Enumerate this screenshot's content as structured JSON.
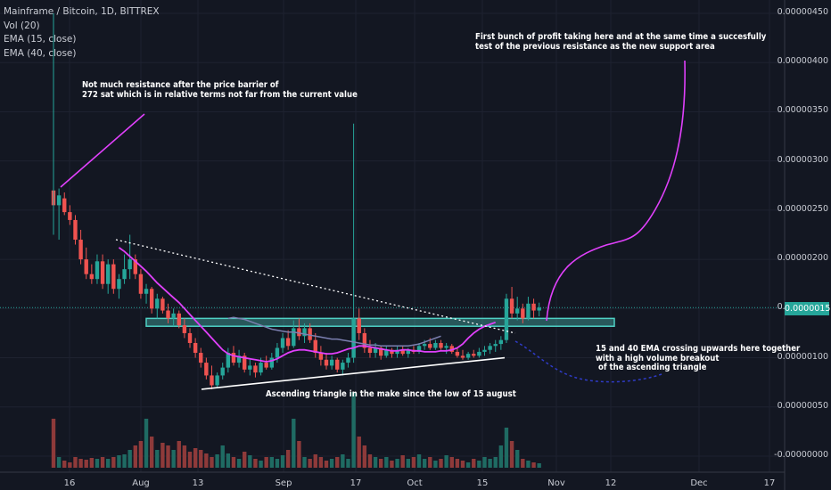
{
  "legend": {
    "title": "Mainframe / Bitcoin, 1D, BITTREX",
    "vol": "Vol (20)",
    "ema15": "EMA (15, close)",
    "ema40": "EMA (40, close)"
  },
  "price_axis": {
    "labels": [
      "0.00000450",
      "0.00000400",
      "0.00000350",
      "0.00000300",
      "0.00000250",
      "0.00000200",
      "0.00000150",
      "0.00000100",
      "0.00000050",
      "-0.00000000"
    ],
    "current_price": "0.00000151"
  },
  "time_axis": {
    "labels": [
      "16",
      "Aug",
      "13",
      "Sep",
      "17",
      "Oct",
      "15",
      "Nov",
      "12",
      "Dec",
      "17"
    ]
  },
  "annotations": {
    "resistance": "Not much resistance after the price barrier of\n272 sat which is in relative terms not far from the current value",
    "profit": "First bunch of profit taking here and at the same time a succesfully\ntest of the previous resistance as the new support area",
    "triangle": "Ascending triangle in the make since the low of 15 august",
    "ema_cross": "15 and 40 EMA crossing upwards here together\nwith a high volume breakout\n of the ascending triangle"
  },
  "colors": {
    "up": "#26a69a",
    "down": "#ef5350",
    "ema15": "#e040fb",
    "ema40": "#7b7fb0",
    "support_zone": "#4fd1c5",
    "projection": "#e040fb",
    "background": "#131722"
  },
  "chart_data": {
    "type": "candlestick",
    "symbol": "Mainframe / Bitcoin",
    "interval": "1D",
    "exchange": "BITTREX",
    "ylim": [
      -5e-08,
      4.6e-06
    ],
    "current_price": 1.51e-06,
    "candles": [
      [
        2.7e-06,
        4.4e-06,
        2.25e-06,
        2.55e-06
      ],
      [
        2.55e-06,
        2.72e-06,
        2.2e-06,
        2.65e-06
      ],
      [
        2.62e-06,
        2.68e-06,
        2.45e-06,
        2.48e-06
      ],
      [
        2.48e-06,
        2.55e-06,
        2.35e-06,
        2.4e-06
      ],
      [
        2.4e-06,
        2.45e-06,
        2.15e-06,
        2.2e-06
      ],
      [
        2.2e-06,
        2.3e-06,
        1.95e-06,
        2e-06
      ],
      [
        2e-06,
        2.12e-06,
        1.8e-06,
        1.85e-06
      ],
      [
        1.85e-06,
        1.95e-06,
        1.75e-06,
        1.8e-06
      ],
      [
        1.8e-06,
        2.05e-06,
        1.75e-06,
        1.98e-06
      ],
      [
        1.98e-06,
        2.05e-06,
        1.7e-06,
        1.75e-06
      ],
      [
        1.75e-06,
        2e-06,
        1.65e-06,
        1.95e-06
      ],
      [
        1.95e-06,
        2e-06,
        1.65e-06,
        1.7e-06
      ],
      [
        1.7e-06,
        1.85e-06,
        1.6e-06,
        1.8e-06
      ],
      [
        1.8e-06,
        2.05e-06,
        1.75e-06,
        1.9e-06
      ],
      [
        1.9e-06,
        2.25e-06,
        1.8e-06,
        2e-06
      ],
      [
        2e-06,
        2.05e-06,
        1.8e-06,
        1.85e-06
      ],
      [
        1.85e-06,
        1.9e-06,
        1.6e-06,
        1.65e-06
      ],
      [
        1.65e-06,
        1.75e-06,
        1.55e-06,
        1.7e-06
      ],
      [
        1.7e-06,
        1.72e-06,
        1.45e-06,
        1.5e-06
      ],
      [
        1.5e-06,
        1.65e-06,
        1.4e-06,
        1.6e-06
      ],
      [
        1.6e-06,
        1.62e-06,
        1.45e-06,
        1.48e-06
      ],
      [
        1.48e-06,
        1.55e-06,
        1.35e-06,
        1.4e-06
      ],
      [
        1.4e-06,
        1.5e-06,
        1.32e-06,
        1.45e-06
      ],
      [
        1.45e-06,
        1.48e-06,
        1.3e-06,
        1.33e-06
      ],
      [
        1.33e-06,
        1.4e-06,
        1.2e-06,
        1.25e-06
      ],
      [
        1.25e-06,
        1.3e-06,
        1.1e-06,
        1.15e-06
      ],
      [
        1.15e-06,
        1.2e-06,
        1e-06,
        1.05e-06
      ],
      [
        1.05e-06,
        1.1e-06,
        9e-07,
        9.5e-07
      ],
      [
        9.5e-07,
        1e-06,
        7.8e-07,
        8.2e-07
      ],
      [
        8.2e-07,
        9.2e-07,
        6.8e-07,
        7.2e-07
      ],
      [
        7.2e-07,
        8.5e-07,
        7e-07,
        8.2e-07
      ],
      [
        8.2e-07,
        9.5e-07,
        7.8e-07,
        9e-07
      ],
      [
        9e-07,
        1.1e-06,
        8.5e-07,
        1.05e-06
      ],
      [
        1.05e-06,
        1.12e-06,
        9.2e-07,
        9.5e-07
      ],
      [
        9.5e-07,
        1.08e-06,
        9e-07,
        1.02e-06
      ],
      [
        1.02e-06,
        1.05e-06,
        8.5e-07,
        8.8e-07
      ],
      [
        8.8e-07,
        9.8e-07,
        8.2e-07,
        9.2e-07
      ],
      [
        9.2e-07,
        9.5e-07,
        8e-07,
        8.5e-07
      ],
      [
        8.5e-07,
        1e-06,
        8.2e-07,
        9.5e-07
      ],
      [
        9.5e-07,
        1.02e-06,
        8.8e-07,
        9e-07
      ],
      [
        9e-07,
        1.05e-06,
        8.8e-07,
        1e-06
      ],
      [
        1e-06,
        1.15e-06,
        9.5e-07,
        1.1e-06
      ],
      [
        1.1e-06,
        1.25e-06,
        1.05e-06,
        1.2e-06
      ],
      [
        1.2e-06,
        1.28e-06,
        1.08e-06,
        1.12e-06
      ],
      [
        1.12e-06,
        1.38e-06,
        1.1e-06,
        1.3e-06
      ],
      [
        1.3e-06,
        1.4e-06,
        1.18e-06,
        1.22e-06
      ],
      [
        1.22e-06,
        1.35e-06,
        1.15e-06,
        1.3e-06
      ],
      [
        1.3e-06,
        1.35e-06,
        1.15e-06,
        1.18e-06
      ],
      [
        1.18e-06,
        1.25e-06,
        1e-06,
        1.05e-06
      ],
      [
        1.05e-06,
        1.12e-06,
        9.2e-07,
        9.8e-07
      ],
      [
        9.8e-07,
        1.05e-06,
        8.8e-07,
        9.2e-07
      ],
      [
        9.2e-07,
        1.02e-06,
        8.8e-07,
        9.8e-07
      ],
      [
        9.8e-07,
        1e-06,
        8.5e-07,
        8.8e-07
      ],
      [
        8.8e-07,
        9.8e-07,
        8.2e-07,
        9.5e-07
      ],
      [
        9.5e-07,
        1.05e-06,
        9e-07,
        1e-06
      ],
      [
        1e-06,
        3.38e-06,
        9.5e-07,
        1.4e-06
      ],
      [
        1.4e-06,
        1.5e-06,
        1.18e-06,
        1.25e-06
      ],
      [
        1.25e-06,
        1.3e-06,
        1.05e-06,
        1.1e-06
      ],
      [
        1.1e-06,
        1.18e-06,
        1e-06,
        1.05e-06
      ],
      [
        1.05e-06,
        1.15e-06,
        1e-06,
        1.1e-06
      ],
      [
        1.1e-06,
        1.12e-06,
        9.8e-07,
        1.02e-06
      ],
      [
        1.02e-06,
        1.12e-06,
        1e-06,
        1.08e-06
      ],
      [
        1.08e-06,
        1.1e-06,
        1e-06,
        1.04e-06
      ],
      [
        1.04e-06,
        1.12e-06,
        1e-06,
        1.08e-06
      ],
      [
        1.08e-06,
        1.12e-06,
        1.02e-06,
        1.04e-06
      ],
      [
        1.04e-06,
        1.1e-06,
        1e-06,
        1.08e-06
      ],
      [
        1.08e-06,
        1.12e-06,
        1.04e-06,
        1.06e-06
      ],
      [
        1.06e-06,
        1.15e-06,
        1.04e-06,
        1.12e-06
      ],
      [
        1.12e-06,
        1.18e-06,
        1.08e-06,
        1.14e-06
      ],
      [
        1.14e-06,
        1.2e-06,
        1.08e-06,
        1.1e-06
      ],
      [
        1.1e-06,
        1.18e-06,
        1.08e-06,
        1.15e-06
      ],
      [
        1.15e-06,
        1.18e-06,
        1.08e-06,
        1.1e-06
      ],
      [
        1.1e-06,
        1.15e-06,
        1.04e-06,
        1.12e-06
      ],
      [
        1.12e-06,
        1.14e-06,
        1.04e-06,
        1.06e-06
      ],
      [
        1.06e-06,
        1.1e-06,
        1e-06,
        1.02e-06
      ],
      [
        1.02e-06,
        1.08e-06,
        9.8e-07,
        1e-06
      ],
      [
        1e-06,
        1.06e-06,
        9.8e-07,
        1.04e-06
      ],
      [
        1.04e-06,
        1.08e-06,
        1e-06,
        1.02e-06
      ],
      [
        1.02e-06,
        1.1e-06,
        1e-06,
        1.06e-06
      ],
      [
        1.06e-06,
        1.12e-06,
        1.02e-06,
        1.08e-06
      ],
      [
        1.08e-06,
        1.15e-06,
        1.04e-06,
        1.12e-06
      ],
      [
        1.12e-06,
        1.18e-06,
        1.06e-06,
        1.14e-06
      ],
      [
        1.14e-06,
        1.22e-06,
        1.08e-06,
        1.18e-06
      ],
      [
        1.18e-06,
        1.65e-06,
        1.15e-06,
        1.6e-06
      ],
      [
        1.6e-06,
        1.72e-06,
        1.4e-06,
        1.45e-06
      ],
      [
        1.45e-06,
        1.62e-06,
        1.38e-06,
        1.5e-06
      ],
      [
        1.5e-06,
        1.55e-06,
        1.35e-06,
        1.4e-06
      ],
      [
        1.4e-06,
        1.62e-06,
        1.38e-06,
        1.55e-06
      ],
      [
        1.55e-06,
        1.6e-06,
        1.4e-06,
        1.48e-06
      ],
      [
        1.48e-06,
        1.56e-06,
        1.42e-06,
        1.51e-06
      ]
    ],
    "volume": [
      5.5e-07,
      1.2e-07,
      8e-08,
      6e-08,
      1.2e-07,
      1e-07,
      9e-08,
      1.1e-07,
      1e-07,
      1.2e-07,
      1e-07,
      1.2e-07,
      1.4e-07,
      1.5e-07,
      2e-07,
      2.5e-07,
      3e-07,
      5.5e-07,
      3.5e-07,
      2e-07,
      2.8e-07,
      2.5e-07,
      2e-07,
      3e-07,
      2.5e-07,
      1.8e-07,
      2.2e-07,
      2e-07,
      1.6e-07,
      1.2e-07,
      1.5e-07,
      2.5e-07,
      1.6e-07,
      1.2e-07,
      1e-07,
      1.8e-07,
      1.4e-07,
      1e-07,
      8e-08,
      1.2e-07,
      1.2e-07,
      1e-07,
      1.4e-07,
      2e-07,
      5.5e-07,
      3e-07,
      1.2e-07,
      1e-07,
      1.5e-07,
      1.2e-07,
      8e-08,
      1e-07,
      1.2e-07,
      1.5e-07,
      1e-07,
      8.5e-07,
      3.5e-07,
      2.5e-07,
      1.5e-07,
      1.2e-07,
      1e-07,
      1.2e-07,
      8e-08,
      1e-07,
      1.4e-07,
      1e-07,
      1.2e-07,
      1.5e-07,
      1e-07,
      1.2e-07,
      8e-08,
      1e-07,
      1.4e-07,
      1.2e-07,
      1e-07,
      8e-08,
      6e-08,
      1e-07,
      8e-08,
      1.2e-07,
      1e-07,
      1.2e-07,
      2.5e-07,
      4.5e-07,
      3e-07,
      2e-07,
      1e-07,
      8e-08,
      6e-08,
      5e-08
    ],
    "ema15": [
      2.12e-06,
      2.08e-06,
      2.03e-06,
      1.98e-06,
      1.93e-06,
      1.88e-06,
      1.82e-06,
      1.76e-06,
      1.71e-06,
      1.66e-06,
      1.61e-06,
      1.56e-06,
      1.5e-06,
      1.44e-06,
      1.38e-06,
      1.32e-06,
      1.26e-06,
      1.2e-06,
      1.14e-06,
      1.08e-06,
      1.04e-06,
      1.02e-06,
      1.01e-06,
      1e-06,
      9.9e-07,
      9.8e-07,
      9.7e-07,
      9.6e-07,
      9.7e-07,
      9.9e-07,
      1.02e-06,
      1.05e-06,
      1.07e-06,
      1.08e-06,
      1.08e-06,
      1.07e-06,
      1.06e-06,
      1.05e-06,
      1.04e-06,
      1.04e-06,
      1.05e-06,
      1.07e-06,
      1.09e-06,
      1.1e-06,
      1.12e-06,
      1.12e-06,
      1.11e-06,
      1.1e-06,
      1.09e-06,
      1.08e-06,
      1.07e-06,
      1.07e-06,
      1.08e-06,
      1.08e-06,
      1.07e-06,
      1.07e-06,
      1.06e-06,
      1.06e-06,
      1.06e-06,
      1.07e-06,
      1.07e-06,
      1.08e-06,
      1.1e-06,
      1.14e-06,
      1.2e-06,
      1.25e-06,
      1.29e-06,
      1.32e-06,
      1.34e-06,
      1.36e-06
    ],
    "ema40": [
      1.4e-06,
      1.41e-06,
      1.4e-06,
      1.39e-06,
      1.37e-06,
      1.35e-06,
      1.33e-06,
      1.31e-06,
      1.29e-06,
      1.28e-06,
      1.27e-06,
      1.26e-06,
      1.26e-06,
      1.25e-06,
      1.24e-06,
      1.23e-06,
      1.22e-06,
      1.21e-06,
      1.2e-06,
      1.19e-06,
      1.19e-06,
      1.18e-06,
      1.17e-06,
      1.16e-06,
      1.15e-06,
      1.14e-06,
      1.13e-06,
      1.13e-06,
      1.12e-06,
      1.12e-06,
      1.12e-06,
      1.12e-06,
      1.12e-06,
      1.12e-06,
      1.13e-06,
      1.14e-06,
      1.16e-06,
      1.18e-06,
      1.2e-06,
      1.22e-06
    ],
    "support_zone": [
      1.32e-06,
      1.4e-06
    ],
    "projection_up": [
      [
        1.2e-06,
        1.3e-06
      ],
      [
        1.55e-06,
        1.7e-06
      ],
      [
        1.85e-06,
        2e-06
      ],
      [
        2.05e-06,
        2.12e-06
      ],
      [
        2.15e-06,
        2.18e-06
      ],
      [
        2.23e-06,
        2.4e-06
      ],
      [
        2.6e-06,
        3e-06
      ],
      [
        3.4e-06,
        4e-06
      ]
    ],
    "projection_down": [
      1.18e-06,
      1.05e-06,
      9.2e-07,
      8.5e-07,
      8e-07,
      7.8e-07,
      7.8e-07,
      8.2e-07
    ],
    "resistance_trendline": [
      2.2e-06,
      1.25e-06
    ],
    "support_trendline": [
      6.8e-07,
      1e-06
    ],
    "resistance_level": 2.72e-06
  }
}
